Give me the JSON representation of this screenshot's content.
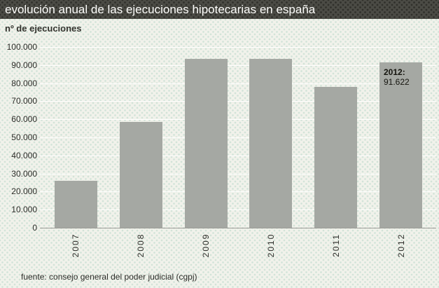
{
  "title": "evolución anual de las ejecuciones hipotecarias en españa",
  "subtitle": "nº de ejecuciones",
  "footer": "fuente: consejo general del poder judicial (cgpj)",
  "annotation": {
    "category": "2012",
    "line1": "2012:",
    "line2": "91.622"
  },
  "colors": {
    "titlebar_bg": "#4b4b45",
    "titlebar_dot": "#30302b",
    "background": "#f1f2eb",
    "background_dot": "#d2e3d8",
    "bar": "#a5a8a3",
    "gridline": "#ffffff",
    "axis": "#9b9b96",
    "text_dark": "#2c2c28",
    "title_text": "#fdfdfb"
  },
  "chart_data": {
    "type": "bar",
    "title": "evolución anual de las ejecuciones hipotecarias en españa",
    "ylabel": "nº de ejecuciones",
    "categories": [
      "2007",
      "2008",
      "2009",
      "2010",
      "2011",
      "2012"
    ],
    "values": [
      25900,
      58700,
      93300,
      93600,
      77900,
      91622
    ],
    "ylim": [
      0,
      100000
    ],
    "ytick_step": 10000,
    "ytick_labels": [
      "0",
      "10.000",
      "20.000",
      "30.000",
      "40.000",
      "50.000",
      "60.000",
      "70.000",
      "80.000",
      "90.000",
      "100.000"
    ],
    "grid": true,
    "legend": "none",
    "annotation_text": "2012: 91.622",
    "source": "fuente: consejo general del poder judicial (cgpj)"
  }
}
